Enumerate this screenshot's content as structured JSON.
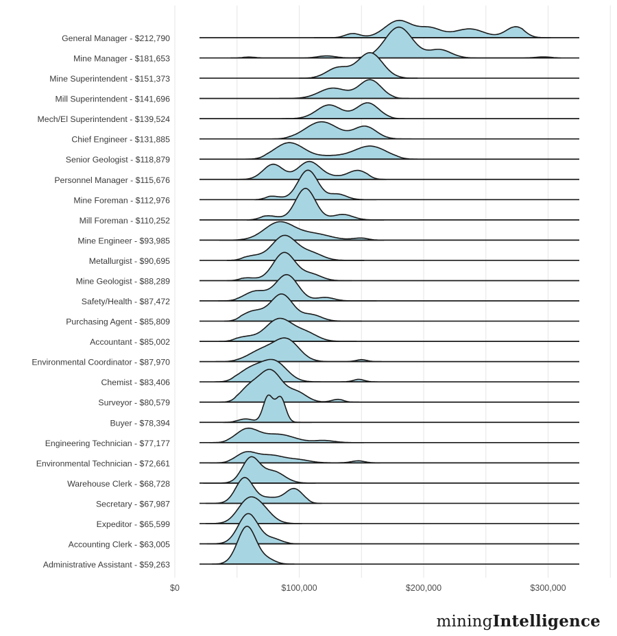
{
  "branding": {
    "logo_regular": "mining",
    "logo_bold": "Intelligence"
  },
  "chart_data": {
    "type": "ridgeline",
    "title": "",
    "xlabel": "",
    "ylabel": "",
    "x_axis_unit": "USD",
    "x_ticks": [
      {
        "label": "$0",
        "value_k": 0
      },
      {
        "label": "$100,000",
        "value_k": 100
      },
      {
        "label": "$200,000",
        "value_k": 200
      },
      {
        "label": "$300,000",
        "value_k": 300
      }
    ],
    "gridline_values_k": [
      0,
      50,
      100,
      150,
      200,
      250,
      300,
      350
    ],
    "baseline_range_k": [
      20,
      324
    ],
    "style": {
      "fill": "#A8D5E2",
      "stroke": "#1A1A1A",
      "gridline_color": "#E7E7E7",
      "label_color": "#3A3A3A",
      "tick_color": "#4A4A4A",
      "background": "#FFFFFF"
    },
    "series": [
      {
        "label": "General Manager - $212,790",
        "job": "General Manager",
        "mean_usd": 212790,
        "span_k": [
          112,
          302
        ],
        "components": [
          [
            180,
            11,
            25
          ],
          [
            205,
            9,
            13
          ],
          [
            239,
            11,
            10
          ],
          [
            274,
            8,
            16
          ],
          [
            143,
            6,
            6
          ],
          [
            228,
            12,
            4
          ]
        ]
      },
      {
        "label": "Mine Manager - $181,653",
        "job": "Mine Manager",
        "mean_usd": 181653,
        "span_k": [
          45,
          310
        ],
        "components": [
          [
            180,
            11,
            45
          ],
          [
            213,
            9,
            12
          ],
          [
            58,
            5,
            3
          ],
          [
            122,
            7,
            3
          ],
          [
            300,
            7,
            4
          ]
        ]
      },
      {
        "label": "Mine Superintendent - $151,373",
        "job": "Mine Superintendent",
        "mean_usd": 151373,
        "span_k": [
          100,
          195
        ],
        "components": [
          [
            157,
            10,
            37
          ],
          [
            131,
            9,
            15
          ]
        ]
      },
      {
        "label": "Mill Superintendent - $141,696",
        "job": "Mill Superintendent",
        "mean_usd": 141696,
        "span_k": [
          84,
          188
        ],
        "components": [
          [
            157,
            9,
            27
          ],
          [
            127,
            11,
            15
          ]
        ]
      },
      {
        "label": "Mech/El Superintendent - $139,524",
        "job": "Mech/El Superintendent",
        "mean_usd": 139524,
        "span_k": [
          86,
          185
        ],
        "components": [
          [
            155,
            9,
            23
          ],
          [
            124,
            10,
            20
          ]
        ]
      },
      {
        "label": "Chief Engineer - $131,885",
        "job": "Chief Engineer",
        "mean_usd": 131885,
        "span_k": [
          78,
          190
        ],
        "components": [
          [
            118,
            13,
            25
          ],
          [
            153,
            9,
            18
          ]
        ]
      },
      {
        "label": "Senior Geologist - $118,879",
        "job": "Senior Geologist",
        "mean_usd": 118879,
        "span_k": [
          57,
          195
        ],
        "components": [
          [
            92,
            12,
            24
          ],
          [
            157,
            13,
            19
          ],
          [
            125,
            12,
            4
          ]
        ]
      },
      {
        "label": "Personnel Manager - $115,676",
        "job": "Personnel Manager",
        "mean_usd": 115676,
        "span_k": [
          45,
          170
        ],
        "components": [
          [
            108,
            9,
            26
          ],
          [
            79,
            8,
            22
          ],
          [
            147,
            8,
            13
          ],
          [
            128,
            8,
            3
          ]
        ]
      },
      {
        "label": "Mine Foreman - $112,976",
        "job": "Mine Foreman",
        "mean_usd": 112976,
        "span_k": [
          64,
          162
        ],
        "components": [
          [
            107,
            8,
            43
          ],
          [
            131,
            7,
            8
          ],
          [
            78,
            7,
            5
          ]
        ]
      },
      {
        "label": "Mill Foreman - $110,252",
        "job": "Mill Foreman",
        "mean_usd": 110252,
        "span_k": [
          58,
          168
        ],
        "components": [
          [
            105,
            8,
            46
          ],
          [
            135,
            8,
            8
          ],
          [
            75,
            8,
            6
          ]
        ]
      },
      {
        "label": "Mine Engineer - $93,985",
        "job": "Mine Engineer",
        "mean_usd": 93985,
        "span_k": [
          36,
          168
        ],
        "components": [
          [
            84,
            12,
            26
          ],
          [
            112,
            13,
            9
          ],
          [
            150,
            7,
            3
          ]
        ]
      },
      {
        "label": "Metallurgist - $90,695",
        "job": "Metallurgist",
        "mean_usd": 90695,
        "span_k": [
          42,
          152
        ],
        "components": [
          [
            88,
            10,
            36
          ],
          [
            110,
            9,
            10
          ],
          [
            62,
            8,
            6
          ]
        ]
      },
      {
        "label": "Mine Geologist - $88,289",
        "job": "Mine Geologist",
        "mean_usd": 88289,
        "span_k": [
          42,
          142
        ],
        "components": [
          [
            88,
            9,
            41
          ],
          [
            110,
            8,
            9
          ],
          [
            58,
            7,
            4
          ]
        ]
      },
      {
        "label": "Safety/Health - $87,472",
        "job": "Safety/Health",
        "mean_usd": 87472,
        "span_k": [
          35,
          162
        ],
        "components": [
          [
            90,
            9,
            38
          ],
          [
            65,
            9,
            14
          ],
          [
            121,
            7,
            5
          ]
        ]
      },
      {
        "label": "Purchasing Agent - $85,809",
        "job": "Purchasing Agent",
        "mean_usd": 85809,
        "span_k": [
          40,
          150
        ],
        "components": [
          [
            86,
            9,
            39
          ],
          [
            63,
            9,
            14
          ],
          [
            110,
            8,
            9
          ]
        ]
      },
      {
        "label": "Accountant - $85,002",
        "job": "Accountant",
        "mean_usd": 85002,
        "span_k": [
          36,
          146
        ],
        "components": [
          [
            84,
            11,
            33
          ],
          [
            106,
            9,
            11
          ],
          [
            56,
            8,
            6
          ]
        ]
      },
      {
        "label": "Environmental Coordinator - $87,970",
        "job": "Environmental Coordinator",
        "mean_usd": 87970,
        "span_k": [
          33,
          166
        ],
        "components": [
          [
            90,
            10,
            31
          ],
          [
            70,
            11,
            16
          ],
          [
            151,
            5,
            3
          ]
        ]
      },
      {
        "label": "Chemist - $83,406",
        "job": "Chemist",
        "mean_usd": 83406,
        "span_k": [
          32,
          163
        ],
        "components": [
          [
            80,
            10,
            29
          ],
          [
            61,
            10,
            18
          ],
          [
            149,
            5,
            4
          ]
        ]
      },
      {
        "label": "Surveyor - $80,579",
        "job": "Surveyor",
        "mean_usd": 80579,
        "span_k": [
          36,
          148
        ],
        "components": [
          [
            77,
            9,
            45
          ],
          [
            60,
            8,
            20
          ],
          [
            98,
            8,
            14
          ],
          [
            131,
            5,
            4
          ]
        ]
      },
      {
        "label": "Buyer - $78,394",
        "job": "Buyer",
        "mean_usd": 78394,
        "span_k": [
          39,
          110
        ],
        "components": [
          [
            75,
            4,
            38
          ],
          [
            85,
            4,
            36
          ],
          [
            57,
            6,
            5
          ]
        ]
      },
      {
        "label": "Engineering Technician - $77,177",
        "job": "Engineering Technician",
        "mean_usd": 77177,
        "span_k": [
          28,
          152
        ],
        "components": [
          [
            58,
            9,
            19
          ],
          [
            83,
            13,
            12
          ],
          [
            120,
            8,
            3
          ]
        ]
      },
      {
        "label": "Environmental Technician - $72,661",
        "job": "Environmental Technician",
        "mean_usd": 72661,
        "span_k": [
          28,
          165
        ],
        "components": [
          [
            57,
            8,
            14
          ],
          [
            77,
            11,
            11
          ],
          [
            100,
            9,
            4
          ],
          [
            148,
            6,
            3
          ]
        ]
      },
      {
        "label": "Warehouse Clerk - $68,728",
        "job": "Warehouse Clerk",
        "mean_usd": 68728,
        "span_k": [
          23,
          113
        ],
        "components": [
          [
            61,
            7,
            36
          ],
          [
            79,
            9,
            17
          ]
        ]
      },
      {
        "label": "Secretary - $67,987",
        "job": "Secretary",
        "mean_usd": 67987,
        "span_k": [
          25,
          118
        ],
        "components": [
          [
            56,
            7,
            37
          ],
          [
            96,
            7,
            21
          ],
          [
            76,
            9,
            8
          ]
        ]
      },
      {
        "label": "Expeditor - $65,599",
        "job": "Expeditor",
        "mean_usd": 65599,
        "span_k": [
          25,
          102
        ],
        "components": [
          [
            57,
            8,
            24
          ],
          [
            68,
            9,
            24
          ]
        ]
      },
      {
        "label": "Accounting Clerk - $63,005",
        "job": "Accounting Clerk",
        "mean_usd": 63005,
        "span_k": [
          26,
          100
        ],
        "components": [
          [
            59,
            8,
            44
          ],
          [
            79,
            7,
            7
          ]
        ]
      },
      {
        "label": "Administrative Assistant - $59,263",
        "job": "Administrative Assistant",
        "mean_usd": 59263,
        "span_k": [
          30,
          96
        ],
        "components": [
          [
            58,
            7.5,
            55
          ],
          [
            75,
            6,
            6
          ]
        ]
      }
    ]
  }
}
